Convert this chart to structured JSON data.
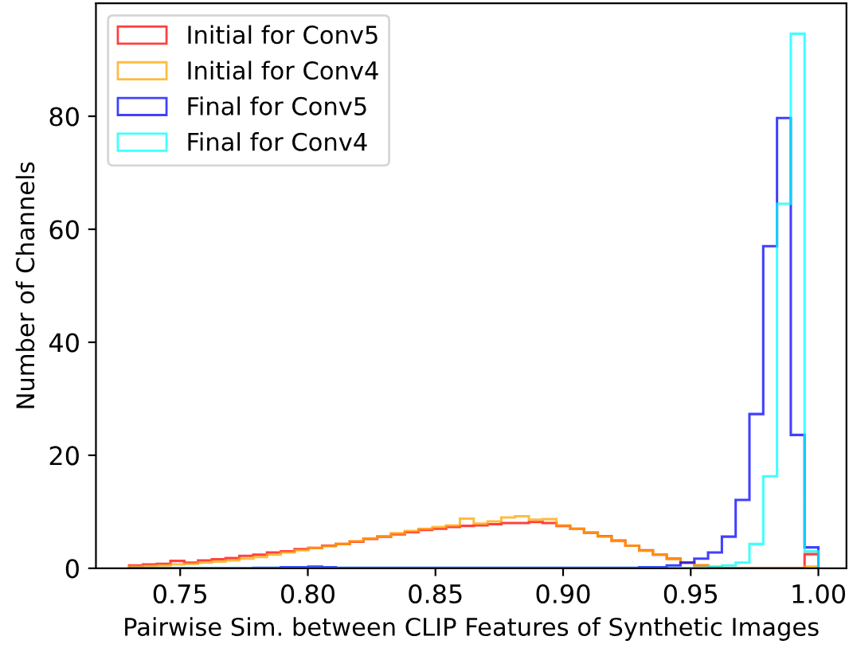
{
  "chart_data": {
    "type": "histogram",
    "xlabel": "Pairwise Sim. between CLIP Features of Synthetic Images",
    "ylabel": "Number of Channels",
    "bins": [
      0.73,
      0.7354,
      0.7408,
      0.7462,
      0.7516,
      0.757,
      0.7624,
      0.7678,
      0.7732,
      0.7786,
      0.784,
      0.7894,
      0.7948,
      0.8002,
      0.8056,
      0.811,
      0.8164,
      0.8218,
      0.8272,
      0.8326,
      0.838,
      0.8434,
      0.8488,
      0.8542,
      0.8596,
      0.865,
      0.8704,
      0.8758,
      0.8812,
      0.8866,
      0.892,
      0.8974,
      0.9028,
      0.9082,
      0.9136,
      0.919,
      0.9244,
      0.9298,
      0.9352,
      0.9406,
      0.946,
      0.9514,
      0.9568,
      0.9622,
      0.9676,
      0.973,
      0.9784,
      0.9838,
      0.9892,
      0.9946,
      1.0
    ],
    "series": [
      {
        "name": "Initial for Conv5",
        "color": "#ff0000",
        "values": [
          0.5,
          0.7,
          0.8,
          1.3,
          1.0,
          1.4,
          1.6,
          1.8,
          2.2,
          2.4,
          2.8,
          3.0,
          3.4,
          3.6,
          4.0,
          4.3,
          4.7,
          5.2,
          5.6,
          6.0,
          6.4,
          6.8,
          7.0,
          7.3,
          7.5,
          7.6,
          7.8,
          8.0,
          8.0,
          8.2,
          8.0,
          7.5,
          7.0,
          6.3,
          5.7,
          4.9,
          4.0,
          3.2,
          2.4,
          1.7,
          1.0,
          0.5,
          0.2,
          0,
          0,
          0,
          0,
          0,
          0,
          2.5
        ]
      },
      {
        "name": "Initial for Conv4",
        "color": "#ffa500",
        "values": [
          0.3,
          0.4,
          0.5,
          0.7,
          0.8,
          1.0,
          1.2,
          1.4,
          1.7,
          2.0,
          2.4,
          2.8,
          3.2,
          3.6,
          3.9,
          4.3,
          4.8,
          5.3,
          5.7,
          6.2,
          6.6,
          7.0,
          7.3,
          7.6,
          8.8,
          7.9,
          8.3,
          9.0,
          9.2,
          8.6,
          8.7,
          7.6,
          7.0,
          6.4,
          5.6,
          4.8,
          4.0,
          3.1,
          2.4,
          1.6,
          1.0,
          0.5,
          0.2,
          0,
          0,
          0,
          0,
          0,
          0,
          0.3
        ]
      },
      {
        "name": "Final for Conv5",
        "color": "#0000ff",
        "values": [
          0,
          0,
          0,
          0,
          0,
          0,
          0,
          0,
          0,
          0.1,
          0.1,
          0.2,
          0.2,
          0.3,
          0.2,
          0.1,
          0.1,
          0.1,
          0.1,
          0.1,
          0.1,
          0.1,
          0.1,
          0.1,
          0.1,
          0.1,
          0.1,
          0.1,
          0.1,
          0.1,
          0.1,
          0.1,
          0.1,
          0.1,
          0.1,
          0.1,
          0.1,
          0.2,
          0.2,
          0.5,
          1.0,
          1.7,
          2.8,
          5.6,
          12.1,
          27.3,
          57.0,
          79.7,
          23.6,
          3.7
        ]
      },
      {
        "name": "Final for Conv4",
        "color": "#00ffff",
        "values": [
          0,
          0,
          0,
          0,
          0,
          0,
          0,
          0,
          0,
          0,
          0,
          0,
          0,
          0,
          0,
          0,
          0,
          0,
          0,
          0,
          0,
          0,
          0,
          0,
          0,
          0,
          0,
          0,
          0,
          0,
          0,
          0,
          0,
          0,
          0,
          0,
          0,
          0,
          0,
          0,
          0,
          0.1,
          0.3,
          0.5,
          1.0,
          4.3,
          16.3,
          64.5,
          94.6,
          3.0
        ]
      }
    ],
    "xlim": [
      0.717,
      1.011
    ],
    "ylim": [
      0,
      100
    ],
    "xticks": [
      {
        "value": 0.75,
        "label": "0.75"
      },
      {
        "value": 0.8,
        "label": "0.80"
      },
      {
        "value": 0.85,
        "label": "0.85"
      },
      {
        "value": 0.9,
        "label": "0.90"
      },
      {
        "value": 0.95,
        "label": "0.95"
      },
      {
        "value": 1.0,
        "label": "1.00"
      }
    ],
    "yticks": [
      0,
      20,
      40,
      60,
      80
    ],
    "legend": "top left",
    "grid": false
  }
}
